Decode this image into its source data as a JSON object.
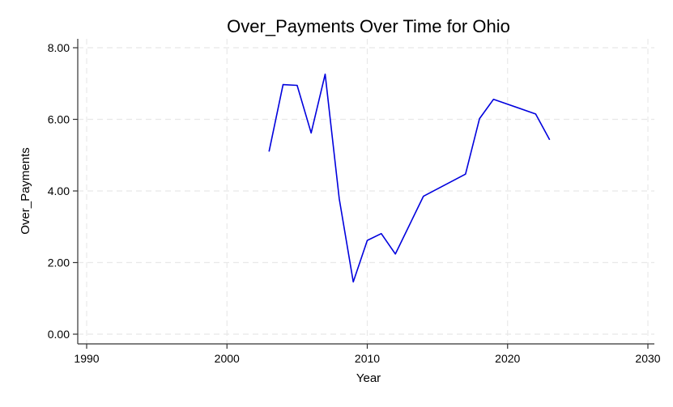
{
  "chart_data": {
    "type": "line",
    "title": "Over_Payments Over Time for Ohio",
    "xlabel": "Year",
    "ylabel": "Over_Payments",
    "xlim": [
      1990,
      2030
    ],
    "ylim": [
      0,
      8
    ],
    "x_ticks": [
      1990,
      2000,
      2010,
      2020,
      2030
    ],
    "x_tick_labels": [
      "1990",
      "2000",
      "2010",
      "2020",
      "2030"
    ],
    "y_ticks": [
      0,
      2,
      4,
      6,
      8
    ],
    "y_tick_labels": [
      "0.00",
      "2.00",
      "4.00",
      "6.00",
      "8.00"
    ],
    "grid": true,
    "series": [
      {
        "color": "#0000dd",
        "x": [
          2003,
          2004,
          2005,
          2006,
          2007,
          2008,
          2009,
          2010,
          2011,
          2012,
          2014,
          2017,
          2018,
          2019,
          2022,
          2023
        ],
        "y": [
          5.1,
          6.97,
          6.95,
          5.62,
          7.26,
          3.78,
          1.46,
          2.62,
          2.81,
          2.24,
          3.85,
          4.47,
          6.02,
          6.56,
          6.15,
          5.43
        ]
      }
    ]
  }
}
